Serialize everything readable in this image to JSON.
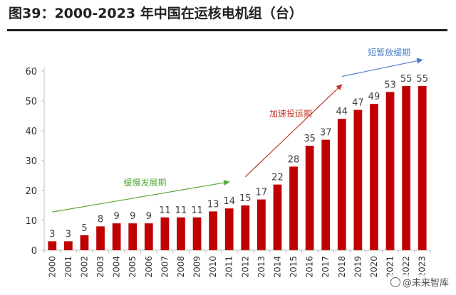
{
  "header": {
    "title": "图39：2000-2023 年中国在运核电机组（台）"
  },
  "watermark": {
    "text": "@未来智库"
  },
  "colors": {
    "bar": "#c00000",
    "axis": "#bfbfbf",
    "tick_text": "#333333",
    "label_text": "#404040",
    "phase_slow": "#5aa83c",
    "phase_fast": "#c0392b",
    "phase_short": "#4a7fc6"
  },
  "chart_data": {
    "type": "bar",
    "title": "2000-2023 年中国在运核电机组（台）",
    "xlabel": "",
    "ylabel": "",
    "ylim": [
      0,
      60
    ],
    "yticks": [
      0,
      10,
      20,
      30,
      40,
      50,
      60
    ],
    "grid": false,
    "categories": [
      "2000",
      "2001",
      "2002",
      "2003",
      "2004",
      "2005",
      "2006",
      "2007",
      "2008",
      "2009",
      "2010",
      "2011",
      "2012",
      "2013",
      "2014",
      "2015",
      "2016",
      "2017",
      "2018",
      "2019",
      "2020",
      "2021",
      "2022",
      "2023"
    ],
    "values": [
      3,
      3,
      5,
      8,
      9,
      9,
      9,
      11,
      11,
      11,
      13,
      14,
      15,
      17,
      22,
      28,
      35,
      37,
      44,
      47,
      49,
      53,
      55,
      55
    ],
    "annotations": [
      {
        "text": "缓慢发展期",
        "from_year": "2000",
        "to_year": "2011",
        "arrow_from_value": 12.8,
        "arrow_to_value": 22.9,
        "color_key": "phase_slow"
      },
      {
        "text": "加速投运期",
        "from_year": "2012",
        "to_year": "2018",
        "arrow_from_value": 24.6,
        "arrow_to_value": 55.5,
        "color_key": "phase_fast"
      },
      {
        "text": "短暂放缓期",
        "from_year": "2018",
        "to_year": "2023",
        "arrow_from_value": 58.2,
        "arrow_to_value": 63.8,
        "color_key": "phase_short"
      }
    ]
  }
}
